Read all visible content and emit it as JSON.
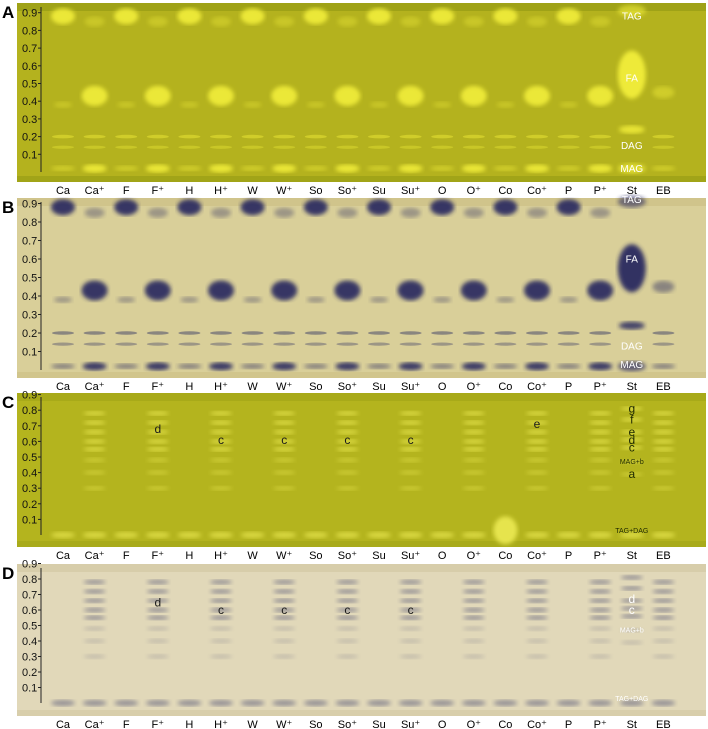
{
  "lanes": [
    "Ca",
    "Ca+",
    "F",
    "F+",
    "H",
    "H+",
    "W",
    "W+",
    "So",
    "So+",
    "Su",
    "Su+",
    "O",
    "O+",
    "Co",
    "Co+",
    "P",
    "P+",
    "St",
    "EB"
  ],
  "lane_labels": [
    "Ca",
    "Ca⁺",
    "F",
    "F⁺",
    "H",
    "H⁺",
    "W",
    "W⁺",
    "So",
    "So⁺",
    "Su",
    "Su⁺",
    "O",
    "O⁺",
    "Co",
    "Co⁺",
    "P",
    "P⁺",
    "St",
    "EB"
  ],
  "rf_ticks": [
    "0.1",
    "0.2",
    "0.3",
    "0.4",
    "0.5",
    "0.6",
    "0.7",
    "0.8",
    "0.9"
  ],
  "colors": {
    "plateA": "#b4b21e",
    "plateAEdge": "#8e9512",
    "spotA": "#f2ee3a",
    "plateB": "#d9cf99",
    "plateBEdge": "#c9bc7f",
    "spotB": "#2a2c60",
    "plateC": "#b4b41e",
    "plateCEdge": "#9ea215",
    "spotC": "#ecea52",
    "plateD": "#e1d8b9",
    "plateDEdge": "#cfc49e",
    "spotD": "#5b5c7a"
  },
  "panels": [
    {
      "letter": "A",
      "standards": [
        {
          "text": "TAG",
          "rf": 0.88
        },
        {
          "text": "FA",
          "rf": 0.53
        },
        {
          "text": "DAG",
          "rf": 0.15
        },
        {
          "text": "MAG",
          "rf": 0.02
        }
      ],
      "annotations": []
    },
    {
      "letter": "B",
      "standards": [
        {
          "text": "TAG",
          "rf": 0.92
        },
        {
          "text": "FA",
          "rf": 0.6
        },
        {
          "text": "DAG",
          "rf": 0.13
        },
        {
          "text": "MAG",
          "rf": 0.0
        }
      ],
      "annotations": []
    },
    {
      "letter": "C",
      "standards": [
        {
          "text": "g",
          "rf": 0.81
        },
        {
          "text": "f",
          "rf": 0.74
        },
        {
          "text": "e",
          "rf": 0.66
        },
        {
          "text": "d",
          "rf": 0.61
        },
        {
          "text": "c",
          "rf": 0.56
        },
        {
          "text": "MAG+b",
          "rf": 0.47
        },
        {
          "text": "a",
          "rf": 0.39
        },
        {
          "text": "TAG+DAG",
          "rf": 0.0
        }
      ],
      "annotations": [
        {
          "lane": "F+",
          "text": "d",
          "rf": 0.68
        },
        {
          "lane": "H+",
          "text": "c",
          "rf": 0.61
        },
        {
          "lane": "W+",
          "text": "c",
          "rf": 0.61
        },
        {
          "lane": "So+",
          "text": "c",
          "rf": 0.61
        },
        {
          "lane": "Su+",
          "text": "c",
          "rf": 0.61
        },
        {
          "lane": "Co+",
          "text": "e",
          "rf": 0.71
        }
      ]
    },
    {
      "letter": "D",
      "standards": [
        {
          "text": "d",
          "rf": 0.67
        },
        {
          "text": "c",
          "rf": 0.6
        },
        {
          "text": "MAG+b",
          "rf": 0.47
        },
        {
          "text": "TAG+DAG",
          "rf": 0.0
        }
      ],
      "annotations": [
        {
          "lane": "F+",
          "text": "d",
          "rf": 0.65
        },
        {
          "lane": "H+",
          "text": "c",
          "rf": 0.6
        },
        {
          "lane": "W+",
          "text": "c",
          "rf": 0.6
        },
        {
          "lane": "So+",
          "text": "c",
          "rf": 0.6
        },
        {
          "lane": "Su+",
          "text": "c",
          "rf": 0.6
        }
      ]
    }
  ]
}
